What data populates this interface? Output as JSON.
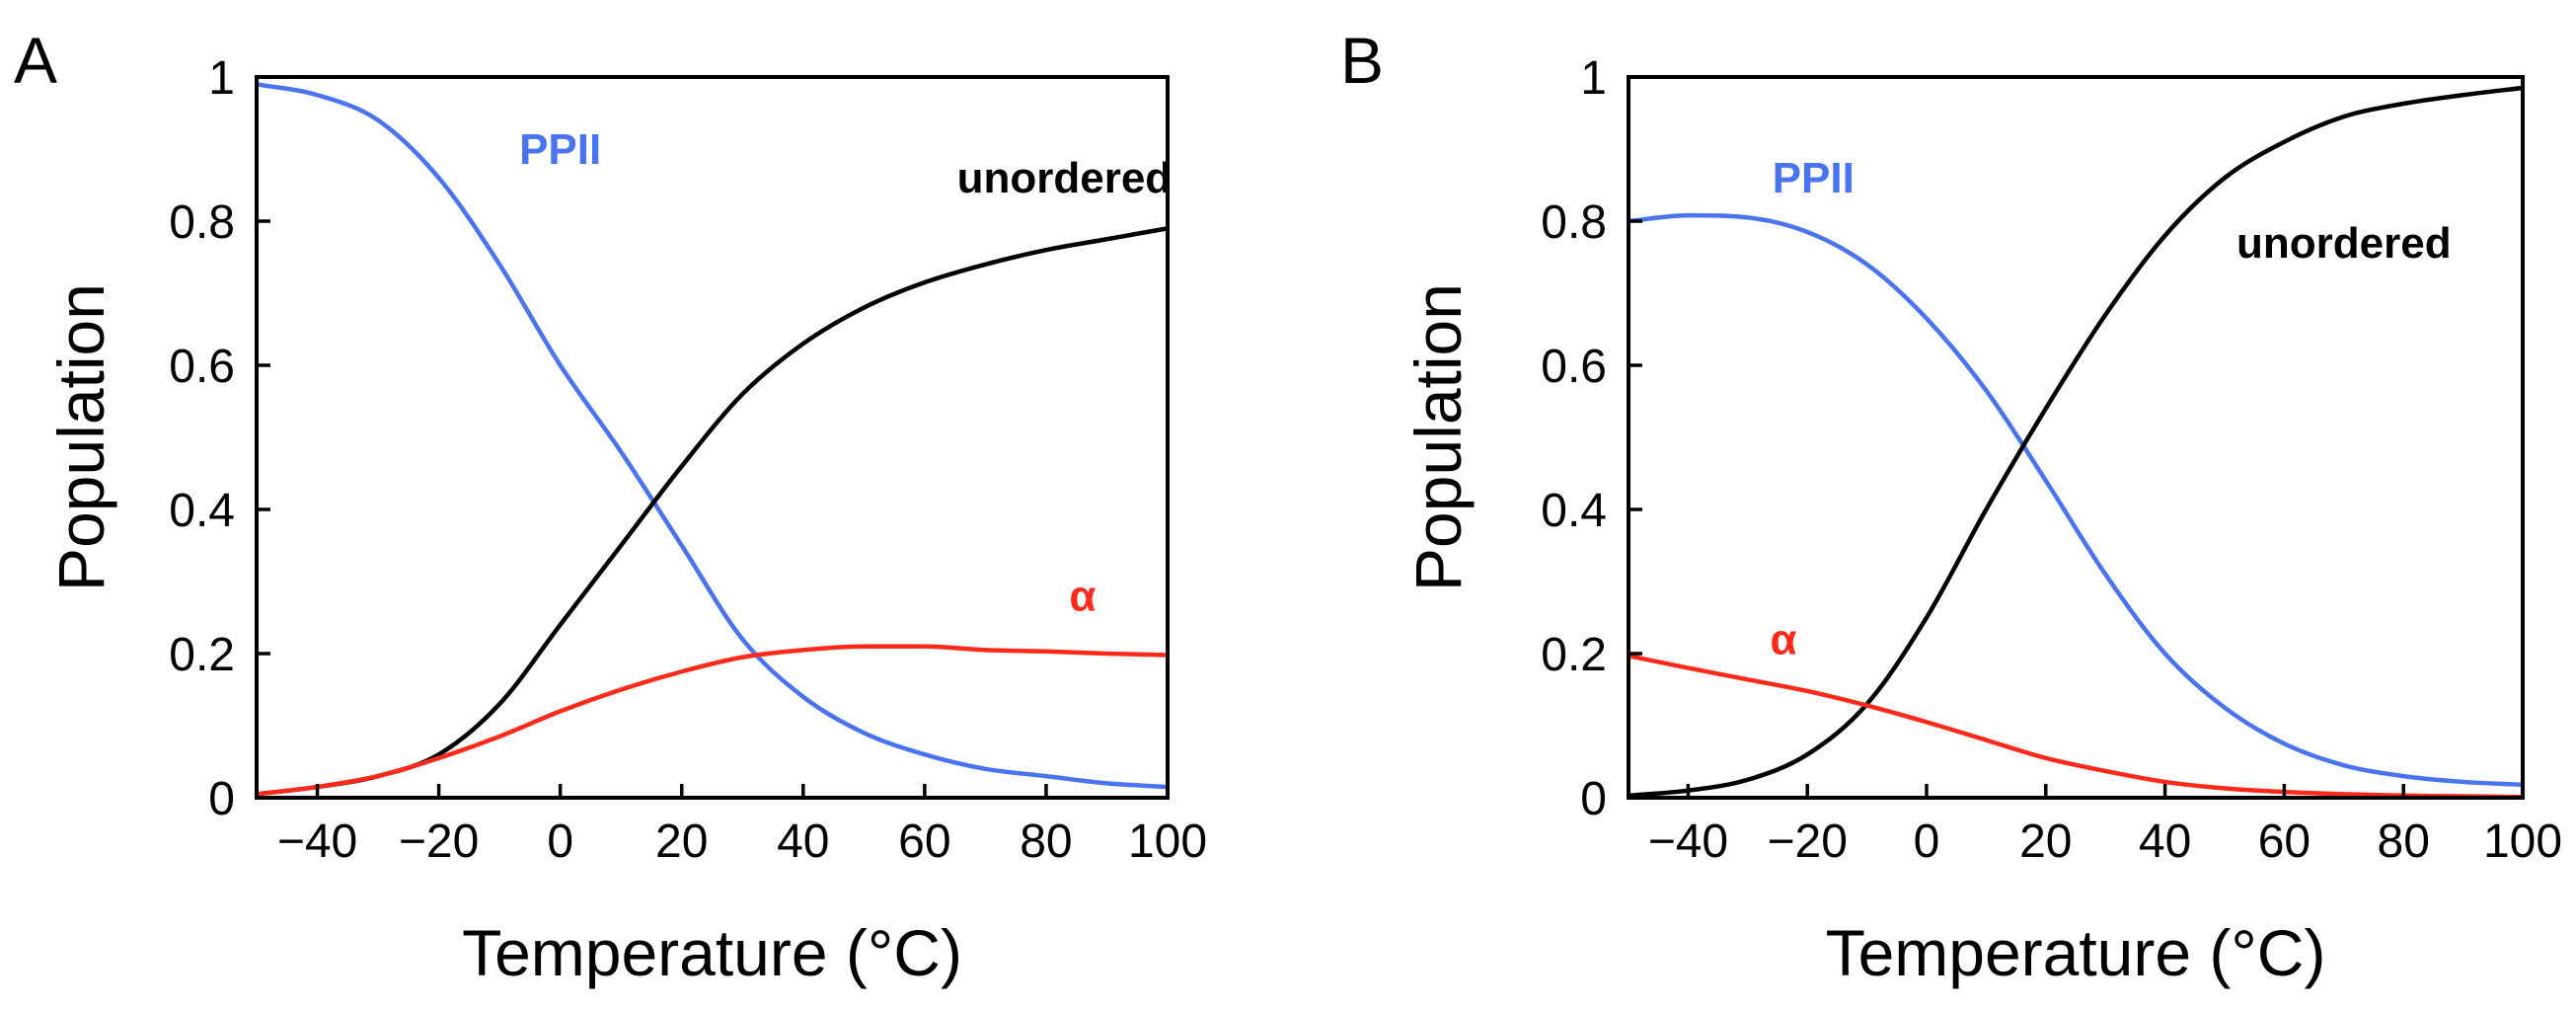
{
  "chart_data": [
    {
      "type": "line",
      "panel_label": "A",
      "xlabel": "Temperature (°C)",
      "ylabel": "Population",
      "xlim": [
        -50,
        100
      ],
      "ylim": [
        0,
        1
      ],
      "x_ticks": [
        -40,
        -20,
        0,
        20,
        40,
        60,
        80,
        100
      ],
      "x_tick_labels": [
        "−40",
        "−20",
        "0",
        "20",
        "40",
        "60",
        "80",
        "100"
      ],
      "y_ticks": [
        0,
        0.2,
        0.4,
        0.6,
        0.8,
        1
      ],
      "y_tick_labels": [
        "0",
        "0.2",
        "0.4",
        "0.6",
        "0.8",
        "1"
      ],
      "x": [
        -50,
        -40,
        -30,
        -20,
        -10,
        0,
        10,
        20,
        30,
        40,
        50,
        60,
        70,
        80,
        90,
        100
      ],
      "series": [
        {
          "name": "PPII",
          "label": "PPII",
          "color": "#4a73f0",
          "label_at": [
            0,
            0.9
          ],
          "values": [
            0.99,
            0.975,
            0.94,
            0.86,
            0.74,
            0.6,
            0.48,
            0.35,
            0.22,
            0.14,
            0.09,
            0.06,
            0.04,
            0.03,
            0.02,
            0.015
          ]
        },
        {
          "name": "unordered",
          "label": "unordered",
          "color": "#000000",
          "label_at": [
            83,
            0.86
          ],
          "values": [
            0.005,
            0.015,
            0.03,
            0.06,
            0.13,
            0.24,
            0.35,
            0.46,
            0.56,
            0.63,
            0.68,
            0.715,
            0.74,
            0.76,
            0.775,
            0.79
          ]
        },
        {
          "name": "alpha",
          "label": "α",
          "color": "#ff2a1a",
          "label_at": [
            86,
            0.28
          ],
          "values": [
            0.005,
            0.015,
            0.03,
            0.055,
            0.085,
            0.12,
            0.15,
            0.175,
            0.195,
            0.205,
            0.21,
            0.21,
            0.205,
            0.203,
            0.2,
            0.198
          ]
        }
      ]
    },
    {
      "type": "line",
      "panel_label": "B",
      "xlabel": "Temperature (°C)",
      "ylabel": "Population",
      "xlim": [
        -50,
        100
      ],
      "ylim": [
        0,
        1
      ],
      "x_ticks": [
        -40,
        -20,
        0,
        20,
        40,
        60,
        80,
        100
      ],
      "x_tick_labels": [
        "−40",
        "−20",
        "0",
        "20",
        "40",
        "60",
        "80",
        "100"
      ],
      "y_ticks": [
        0,
        0.2,
        0.4,
        0.6,
        0.8,
        1
      ],
      "y_tick_labels": [
        "0",
        "0.2",
        "0.4",
        "0.6",
        "0.8",
        "1"
      ],
      "x": [
        -50,
        -40,
        -30,
        -20,
        -10,
        0,
        10,
        20,
        30,
        40,
        50,
        60,
        70,
        80,
        90,
        100
      ],
      "series": [
        {
          "name": "PPII",
          "label": "PPII",
          "color": "#4a73f0",
          "label_at": [
            -19,
            0.86
          ],
          "values": [
            0.8,
            0.808,
            0.805,
            0.785,
            0.74,
            0.665,
            0.565,
            0.44,
            0.31,
            0.2,
            0.125,
            0.075,
            0.045,
            0.03,
            0.022,
            0.018
          ]
        },
        {
          "name": "unordered",
          "label": "unordered",
          "color": "#000000",
          "label_at": [
            70,
            0.77
          ],
          "values": [
            0.003,
            0.01,
            0.025,
            0.06,
            0.13,
            0.25,
            0.4,
            0.54,
            0.67,
            0.78,
            0.86,
            0.91,
            0.945,
            0.963,
            0.975,
            0.985
          ]
        },
        {
          "name": "alpha",
          "label": "α",
          "color": "#ff2a1a",
          "label_at": [
            -24,
            0.22
          ],
          "values": [
            0.197,
            0.18,
            0.164,
            0.148,
            0.128,
            0.105,
            0.08,
            0.055,
            0.037,
            0.022,
            0.013,
            0.008,
            0.005,
            0.003,
            0.002,
            0.001
          ]
        }
      ]
    }
  ]
}
